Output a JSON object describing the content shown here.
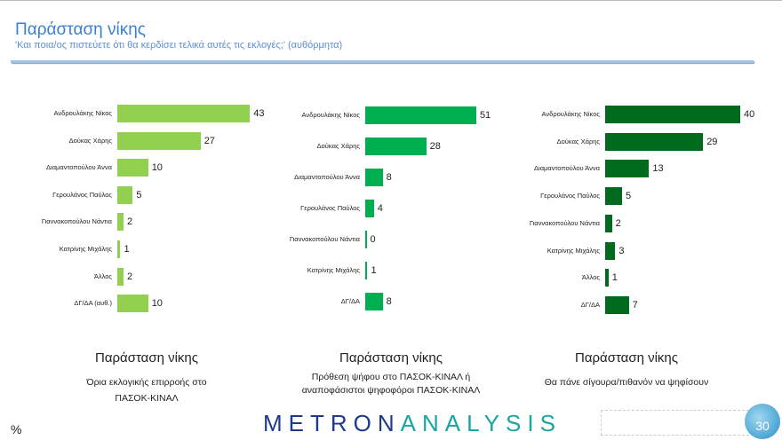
{
  "header": {
    "title": "Παράσταση νίκης",
    "subtitle": "'Και ποια/ος πιστεύετε ότι θα κερδίσει τελικά αυτές τις εκλογές;' (αυθόρμητα)"
  },
  "chart_data": [
    {
      "type": "bar",
      "orientation": "horizontal",
      "color": "#92d050",
      "categories": [
        "Ανδρουλάκης Νίκος",
        "Δούκας Χάρης",
        "Διαμαντοπούλου Άννα",
        "Γερουλάνος Παύλος",
        "Γιαννακοπούλου Νάντια",
        "Κατρίνης Μιχάλης",
        "Άλλος",
        "ΔΓ/ΔΑ (αυθ.)"
      ],
      "values": [
        43,
        27,
        10,
        5,
        2,
        1,
        2,
        10
      ],
      "title": "Παράσταση νίκης",
      "subtitle": "Όρια εκλογικής επιρροής στο ΠΑΣΟΚ-ΚΙΝΑΛ"
    },
    {
      "type": "bar",
      "orientation": "horizontal",
      "color": "#00b050",
      "categories": [
        "Ανδρουλάκης Νίκος",
        "Δούκας Χάρης",
        "Διαμαντοπούλου Άννα",
        "Γερουλάνος Παύλος",
        "Γιαννακοπούλου Νάντια",
        "Κατρίνης Μιχάλης",
        "ΔΓ/ΔΑ"
      ],
      "values": [
        51,
        28,
        8,
        4,
        0,
        1,
        8
      ],
      "title": "Παράσταση νίκης",
      "subtitle": "Πρόθεση ψήφου στο ΠΑΣΟΚ-ΚΙΝΑΛ ή αναποφάσιστοι ψηφοφόροι ΠΑΣΟΚ-ΚΙΝΑΛ"
    },
    {
      "type": "bar",
      "orientation": "horizontal",
      "color": "#006b1f",
      "categories": [
        "Ανδρουλάκης Νίκος",
        "Δούκας Χάρης",
        "Διαμαντοπούλου Άννα",
        "Γερουλάνος Παύλος",
        "Γιαννακοπούλου Νάντια",
        "Κατρίνης Μιχάλης",
        "Άλλος",
        "ΔΓ/ΔΑ"
      ],
      "values": [
        40,
        29,
        13,
        5,
        2,
        3,
        1,
        7
      ],
      "title": "Παράσταση νίκης",
      "subtitle": "Θα πάνε σίγουρα/πιθανόν να ψηφίσουν"
    }
  ],
  "footer": {
    "unit": "%",
    "logo_left": "METRON",
    "logo_right": "ANALYSIS",
    "page": "30"
  }
}
